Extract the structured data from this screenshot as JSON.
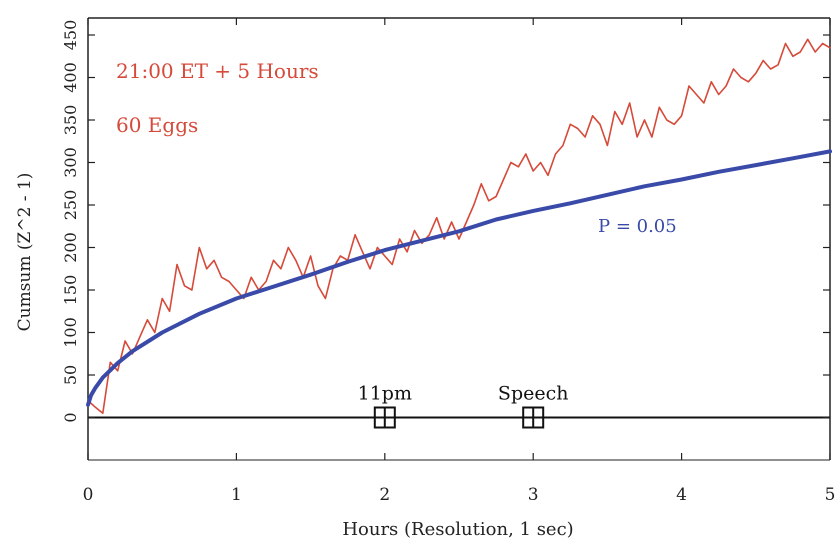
{
  "chart_data": {
    "type": "line",
    "title": "",
    "xlabel": "Hours (Resolution, 1 sec)",
    "ylabel": "Cumsum (Z^2 - 1)",
    "xlim": [
      0,
      5
    ],
    "ylim": [
      -50,
      470
    ],
    "x_ticks": [
      0,
      1,
      2,
      3,
      4,
      5
    ],
    "y_ticks": [
      0,
      50,
      100,
      150,
      200,
      250,
      300,
      350,
      400,
      450
    ],
    "grid": false,
    "annotations": [
      {
        "text": "21:00 ET + 5 Hours",
        "color": "#d64a3a"
      },
      {
        "text": "60 Eggs",
        "color": "#d64a3a"
      },
      {
        "text": "P = 0.05",
        "color": "#3a4aa8"
      }
    ],
    "markers": [
      {
        "label": "11pm",
        "x": 2.0,
        "y": 0
      },
      {
        "label": "Speech",
        "x": 3.0,
        "y": 0
      }
    ],
    "series": [
      {
        "color": "#d64a3a",
        "x": [
          0,
          0.05,
          0.1,
          0.15,
          0.2,
          0.25,
          0.3,
          0.35,
          0.4,
          0.45,
          0.5,
          0.55,
          0.6,
          0.65,
          0.7,
          0.75,
          0.8,
          0.85,
          0.9,
          0.95,
          1.0,
          1.05,
          1.1,
          1.15,
          1.2,
          1.25,
          1.3,
          1.35,
          1.4,
          1.45,
          1.5,
          1.55,
          1.6,
          1.65,
          1.7,
          1.75,
          1.8,
          1.85,
          1.9,
          1.95,
          2.0,
          2.05,
          2.1,
          2.15,
          2.2,
          2.25,
          2.3,
          2.35,
          2.4,
          2.45,
          2.5,
          2.55,
          2.6,
          2.65,
          2.7,
          2.75,
          2.8,
          2.85,
          2.9,
          2.95,
          3.0,
          3.05,
          3.1,
          3.15,
          3.2,
          3.25,
          3.3,
          3.35,
          3.4,
          3.45,
          3.5,
          3.55,
          3.6,
          3.65,
          3.7,
          3.75,
          3.8,
          3.85,
          3.9,
          3.95,
          4.0,
          4.05,
          4.1,
          4.15,
          4.2,
          4.25,
          4.3,
          4.35,
          4.4,
          4.45,
          4.5,
          4.55,
          4.6,
          4.65,
          4.7,
          4.75,
          4.8,
          4.85,
          4.9,
          4.95,
          5.0
        ],
        "values": [
          20,
          12,
          5,
          65,
          55,
          90,
          75,
          95,
          115,
          100,
          140,
          125,
          180,
          155,
          150,
          200,
          175,
          185,
          165,
          160,
          150,
          140,
          165,
          150,
          160,
          185,
          175,
          200,
          185,
          165,
          190,
          155,
          140,
          175,
          190,
          185,
          215,
          195,
          175,
          200,
          190,
          180,
          210,
          195,
          220,
          205,
          215,
          235,
          210,
          230,
          210,
          230,
          250,
          275,
          255,
          260,
          280,
          300,
          295,
          310,
          290,
          300,
          285,
          310,
          320,
          345,
          340,
          330,
          355,
          345,
          320,
          360,
          345,
          370,
          330,
          350,
          330,
          365,
          350,
          345,
          355,
          390,
          380,
          370,
          395,
          380,
          390,
          410,
          400,
          395,
          405,
          420,
          410,
          415,
          440,
          425,
          430,
          445,
          430,
          440,
          435
        ]
      },
      {
        "name": "P = 0.05",
        "color": "#3a4aa8",
        "x": [
          0,
          0.02,
          0.05,
          0.1,
          0.2,
          0.3,
          0.5,
          0.75,
          1.0,
          1.25,
          1.5,
          1.75,
          2.0,
          2.25,
          2.5,
          2.75,
          3.0,
          3.25,
          3.5,
          3.75,
          4.0,
          4.25,
          4.5,
          4.75,
          5.0
        ],
        "values": [
          15,
          26,
          35,
          47,
          64,
          78,
          100,
          122,
          140,
          154,
          168,
          183,
          197,
          208,
          219,
          233,
          243,
          252,
          262,
          272,
          280,
          289,
          297,
          305,
          313
        ]
      }
    ]
  }
}
